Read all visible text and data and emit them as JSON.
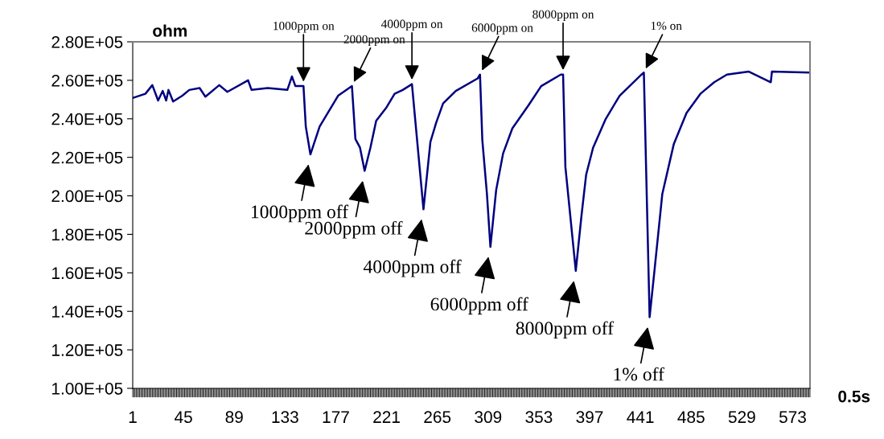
{
  "chart_data": {
    "type": "line",
    "xlabel": "0.5s",
    "ylabel": "ohm",
    "x": [
      1,
      2,
      12,
      18,
      23,
      27,
      30,
      32,
      36,
      44,
      50,
      59,
      64,
      76,
      83,
      101,
      104,
      118,
      135,
      139,
      142,
      149,
      151,
      155,
      163,
      170,
      179,
      191,
      194,
      198,
      202,
      207,
      212,
      221,
      228,
      235,
      243,
      253,
      259,
      264,
      270,
      281,
      300,
      302,
      304,
      308,
      311,
      316,
      322,
      330,
      344,
      355,
      372,
      374,
      376,
      385,
      390,
      394,
      400,
      411,
      423,
      442,
      444,
      449,
      453,
      460,
      470,
      481,
      493,
      505,
      516,
      535,
      554,
      555,
      588
    ],
    "series": [
      {
        "color": "#000080",
        "values": [
          251000,
          251000,
          253000,
          257500,
          249500,
          254500,
          249500,
          255000,
          249000,
          252000,
          255000,
          256000,
          251500,
          257500,
          254000,
          260000,
          255000,
          256000,
          255000,
          262000,
          257000,
          257000,
          236000,
          221500,
          236000,
          243000,
          252000,
          257000,
          229500,
          225000,
          213000,
          225000,
          239000,
          246000,
          253000,
          255000,
          258000,
          193000,
          228000,
          238000,
          248000,
          254500,
          261000,
          263000,
          229000,
          201000,
          173500,
          203000,
          222000,
          235000,
          247000,
          257000,
          263000,
          263000,
          215000,
          161000,
          190000,
          211000,
          225000,
          240000,
          252000,
          263000,
          264000,
          137000,
          160000,
          201000,
          227000,
          243000,
          253000,
          259000,
          263000,
          264500,
          259000,
          264500,
          264000
        ]
      }
    ],
    "xlim": [
      1,
      588
    ],
    "xticks": [
      1,
      45,
      89,
      133,
      177,
      221,
      265,
      309,
      353,
      397,
      441,
      485,
      529,
      573
    ],
    "ylim": [
      100000,
      280000
    ],
    "yticks": [
      {
        "value": 100000,
        "label": "1.00E+05"
      },
      {
        "value": 120000,
        "label": "1.20E+05"
      },
      {
        "value": 140000,
        "label": "1.40E+05"
      },
      {
        "value": 160000,
        "label": "1.60E+05"
      },
      {
        "value": 180000,
        "label": "1.80E+05"
      },
      {
        "value": 200000,
        "label": "2.00E+05"
      },
      {
        "value": 220000,
        "label": "2.20E+05"
      },
      {
        "value": 240000,
        "label": "2.40E+05"
      },
      {
        "value": 260000,
        "label": "2.60E+05"
      },
      {
        "value": 280000,
        "label": "2.80E+05"
      }
    ],
    "grid": false,
    "legend": false,
    "marker": "none",
    "line_style": "solid",
    "annotations": [
      {
        "text": "1000ppm on",
        "x": 149,
        "y": 257000
      },
      {
        "text": "2000ppm on",
        "x": 191,
        "y": 257000
      },
      {
        "text": "4000ppm on",
        "x": 243,
        "y": 258000
      },
      {
        "text": "6000ppm on",
        "x": 302,
        "y": 263000
      },
      {
        "text": "8000ppm on",
        "x": 374,
        "y": 263000
      },
      {
        "text": "1% on",
        "x": 444,
        "y": 264000
      },
      {
        "text": "1000ppm off",
        "x": 155,
        "y": 221500
      },
      {
        "text": "2000ppm off",
        "x": 202,
        "y": 213000
      },
      {
        "text": "4000ppm off",
        "x": 253,
        "y": 193000
      },
      {
        "text": "6000ppm off",
        "x": 311,
        "y": 173500
      },
      {
        "text": "8000ppm off",
        "x": 385,
        "y": 161000
      },
      {
        "text": "1% off",
        "x": 449,
        "y": 137000
      }
    ]
  }
}
